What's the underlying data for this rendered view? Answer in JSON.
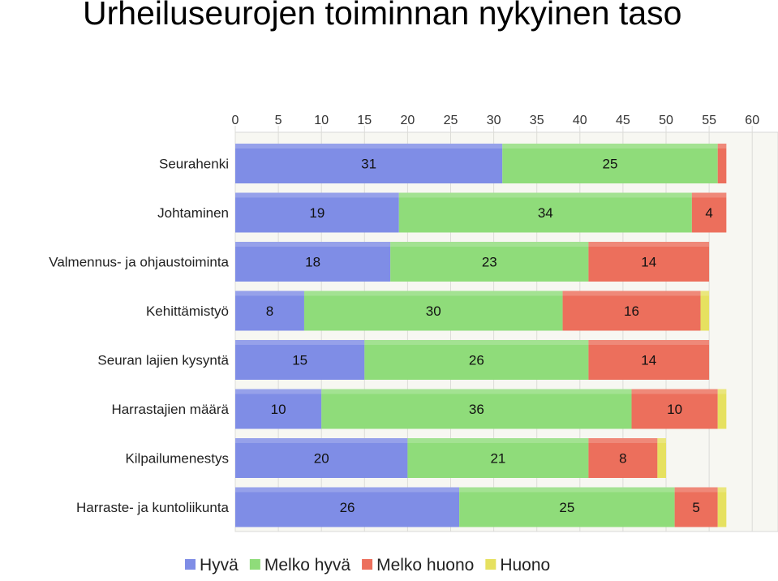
{
  "title": "Urheiluseurojen toiminnan nykyinen taso",
  "chart_data": {
    "type": "bar",
    "orientation": "horizontal",
    "stacked": true,
    "categories": [
      "Seurahenki",
      "Johtaminen",
      "Valmennus- ja ohjaustoiminta",
      "Kehittämistyö",
      "Seuran lajien kysyntä",
      "Harrastajien määrä",
      "Kilpailumenestys",
      "Harraste- ja kuntoliikunta"
    ],
    "series": [
      {
        "name": "Hyvä",
        "color": "#7f8de6",
        "values": [
          31,
          19,
          18,
          8,
          15,
          10,
          20,
          26
        ],
        "labels": [
          "31",
          "19",
          "18",
          "8",
          "15",
          "10",
          "20",
          "26"
        ]
      },
      {
        "name": "Melko hyvä",
        "color": "#8fdc7a",
        "values": [
          25,
          34,
          23,
          30,
          26,
          36,
          21,
          25
        ],
        "labels": [
          "25",
          "34",
          "23",
          "30",
          "26",
          "36",
          "21",
          "25"
        ]
      },
      {
        "name": "Melko huono",
        "color": "#ec6f5c",
        "values": [
          1,
          4,
          14,
          16,
          14,
          10,
          8,
          5
        ],
        "labels": [
          "",
          "4",
          "14",
          "16",
          "14",
          "10",
          "8",
          "5"
        ]
      },
      {
        "name": "Huono",
        "color": "#e6e160",
        "values": [
          0,
          0,
          0,
          1,
          0,
          1,
          1,
          1
        ],
        "labels": [
          "",
          "",
          "",
          "",
          "",
          "",
          "",
          ""
        ]
      }
    ],
    "xlim": [
      0,
      63
    ],
    "xticks": [
      0,
      5,
      10,
      15,
      20,
      25,
      30,
      35,
      40,
      45,
      50,
      55,
      60
    ],
    "xaxis_position": "top",
    "grid": true,
    "legend_position": "bottom"
  }
}
